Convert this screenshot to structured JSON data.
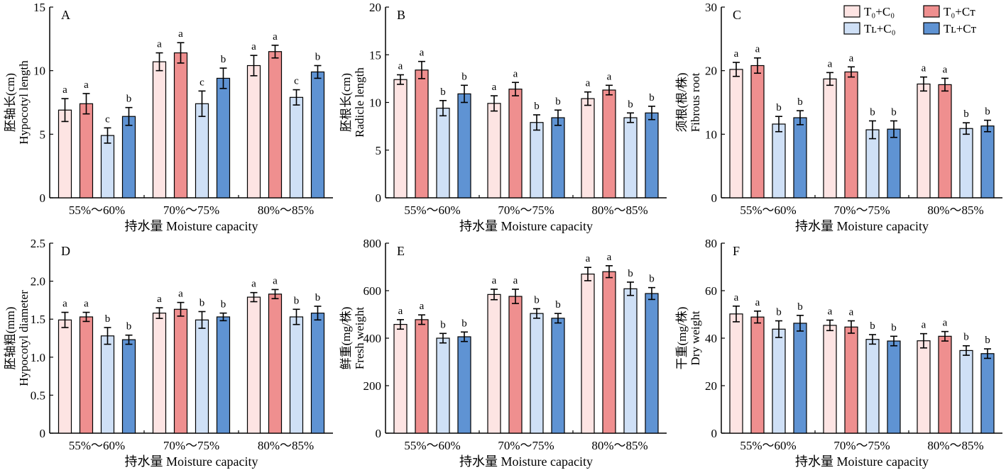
{
  "legend": [
    {
      "label": "T₀+C₀",
      "color": "#fde4e3"
    },
    {
      "label": "T₀+Cᴛ",
      "color": "#ef8f8f"
    },
    {
      "label": "Tʟ+C₀",
      "color": "#cfe0f6"
    },
    {
      "label": "Tʟ+Cᴛ",
      "color": "#5f93d3"
    }
  ],
  "chart_data": [
    {
      "type": "bar",
      "panel_label": "A",
      "categories": [
        "55%～60%",
        "70%～75%",
        "80%～85%"
      ],
      "xlabel": "持水量 Moisture capacity",
      "ylabel_cn": "胚轴长(cm)",
      "ylabel_en": "Hypocotyl length",
      "ylim": [
        0,
        15
      ],
      "yticks": [
        0,
        5,
        10,
        15
      ],
      "series": [
        {
          "values": [
            6.9,
            10.7,
            10.4
          ],
          "errors": [
            0.9,
            0.7,
            0.8
          ],
          "letters": [
            "a",
            "a",
            "a"
          ]
        },
        {
          "values": [
            7.4,
            11.4,
            11.5
          ],
          "errors": [
            0.8,
            0.8,
            0.5
          ],
          "letters": [
            "a",
            "a",
            "a"
          ]
        },
        {
          "values": [
            4.9,
            7.4,
            7.9
          ],
          "errors": [
            0.6,
            1.0,
            0.6
          ],
          "letters": [
            "c",
            "c",
            "c"
          ]
        },
        {
          "values": [
            6.4,
            9.4,
            9.9
          ],
          "errors": [
            0.7,
            0.8,
            0.5
          ],
          "letters": [
            "b",
            "b",
            "b"
          ]
        }
      ]
    },
    {
      "type": "bar",
      "panel_label": "B",
      "categories": [
        "55%～60%",
        "70%～75%",
        "80%～85%"
      ],
      "xlabel": "持水量 Moisture capacity",
      "ylabel_cn": "胚根长(cm)",
      "ylabel_en": "Radicle length",
      "ylim": [
        0,
        20
      ],
      "yticks": [
        0,
        5,
        10,
        15,
        20
      ],
      "series": [
        {
          "values": [
            12.4,
            9.9,
            10.4
          ],
          "errors": [
            0.5,
            0.8,
            0.7
          ],
          "letters": [
            "a",
            "a",
            "a"
          ]
        },
        {
          "values": [
            13.4,
            11.4,
            11.3
          ],
          "errors": [
            0.9,
            0.7,
            0.5
          ],
          "letters": [
            "a",
            "a",
            "a"
          ]
        },
        {
          "values": [
            9.4,
            7.9,
            8.4
          ],
          "errors": [
            0.8,
            0.8,
            0.5
          ],
          "letters": [
            "b",
            "b",
            "b"
          ]
        },
        {
          "values": [
            10.9,
            8.4,
            8.9
          ],
          "errors": [
            0.9,
            0.8,
            0.7
          ],
          "letters": [
            "b",
            "b",
            "b"
          ]
        }
      ]
    },
    {
      "type": "bar",
      "panel_label": "C",
      "categories": [
        "55%～60%",
        "70%～75%",
        "80%～85%"
      ],
      "xlabel": "持水量 Moisture capacity",
      "ylabel_cn": "须根(根/株)",
      "ylabel_en": "Fibrous root",
      "ylim": [
        0,
        30
      ],
      "yticks": [
        0,
        10,
        20,
        30
      ],
      "series": [
        {
          "values": [
            20.2,
            18.7,
            17.9
          ],
          "errors": [
            1.1,
            1.0,
            1.1
          ],
          "letters": [
            "a",
            "a",
            "a"
          ]
        },
        {
          "values": [
            20.8,
            19.8,
            17.8
          ],
          "errors": [
            1.2,
            0.8,
            1.0
          ],
          "letters": [
            "a",
            "a",
            "a"
          ]
        },
        {
          "values": [
            11.6,
            10.7,
            10.9
          ],
          "errors": [
            1.2,
            1.4,
            0.9
          ],
          "letters": [
            "b",
            "b",
            "b"
          ]
        },
        {
          "values": [
            12.6,
            10.8,
            11.3
          ],
          "errors": [
            1.1,
            1.3,
            0.9
          ],
          "letters": [
            "b",
            "b",
            "b"
          ]
        }
      ]
    },
    {
      "type": "bar",
      "panel_label": "D",
      "categories": [
        "55%～60%",
        "70%～75%",
        "80%～85%"
      ],
      "xlabel": "持水量 Moisture capacity",
      "ylabel_cn": "胚轴粗(mm)",
      "ylabel_en": "Hypocotyl diameter",
      "ylim": [
        0,
        2.5
      ],
      "yticks": [
        0,
        0.5,
        1.0,
        1.5,
        2.0,
        2.5
      ],
      "ytick_labels": [
        "0",
        "0.5",
        "1.0",
        "1.5",
        "2.0",
        "2.5"
      ],
      "series": [
        {
          "values": [
            1.49,
            1.58,
            1.79
          ],
          "errors": [
            0.1,
            0.07,
            0.06
          ],
          "letters": [
            "a",
            "a",
            "a"
          ]
        },
        {
          "values": [
            1.53,
            1.63,
            1.83
          ],
          "errors": [
            0.06,
            0.09,
            0.06
          ],
          "letters": [
            "a",
            "a",
            "a"
          ]
        },
        {
          "values": [
            1.28,
            1.49,
            1.53
          ],
          "errors": [
            0.11,
            0.11,
            0.1
          ],
          "letters": [
            "b",
            "b",
            "b"
          ]
        },
        {
          "values": [
            1.23,
            1.53,
            1.58
          ],
          "errors": [
            0.06,
            0.05,
            0.09
          ],
          "letters": [
            "b",
            "b",
            "b"
          ]
        }
      ]
    },
    {
      "type": "bar",
      "panel_label": "E",
      "categories": [
        "55%～60%",
        "70%～75%",
        "80%～85%"
      ],
      "xlabel": "持水量 Moisture capacity",
      "ylabel_cn": "鲜重(mg/株)",
      "ylabel_en": "Fresh weight",
      "ylim": [
        0,
        800
      ],
      "yticks": [
        0,
        200,
        400,
        600,
        800
      ],
      "series": [
        {
          "values": [
            458,
            584,
            670
          ],
          "errors": [
            20,
            22,
            28
          ],
          "letters": [
            "a",
            "a",
            "a"
          ]
        },
        {
          "values": [
            478,
            576,
            680
          ],
          "errors": [
            20,
            30,
            25
          ],
          "letters": [
            "a",
            "a",
            "a"
          ]
        },
        {
          "values": [
            400,
            504,
            608
          ],
          "errors": [
            20,
            20,
            28
          ],
          "letters": [
            "b",
            "b",
            "b"
          ]
        },
        {
          "values": [
            406,
            484,
            588
          ],
          "errors": [
            20,
            20,
            25
          ],
          "letters": [
            "b",
            "b",
            "b"
          ]
        }
      ]
    },
    {
      "type": "bar",
      "panel_label": "F",
      "categories": [
        "55%～60%",
        "70%～75%",
        "80%～85%"
      ],
      "xlabel": "持水量 Moisture capacity",
      "ylabel_cn": "干重(mg/株)",
      "ylabel_en": "Dry weight",
      "ylim": [
        0,
        80
      ],
      "yticks": [
        0,
        20,
        40,
        60,
        80
      ],
      "series": [
        {
          "values": [
            50.2,
            45.4,
            38.9
          ],
          "errors": [
            3.3,
            2.2,
            3.0
          ],
          "letters": [
            "a",
            "a",
            "a"
          ]
        },
        {
          "values": [
            48.9,
            44.7,
            40.8
          ],
          "errors": [
            2.5,
            2.6,
            2.0
          ],
          "letters": [
            "a",
            "a",
            "a"
          ]
        },
        {
          "values": [
            43.8,
            39.5,
            34.8
          ],
          "errors": [
            3.5,
            2.0,
            2.0
          ],
          "letters": [
            "b",
            "b",
            "b"
          ]
        },
        {
          "values": [
            46.3,
            38.8,
            33.5
          ],
          "errors": [
            3.3,
            2.0,
            2.0
          ],
          "letters": [
            "b",
            "b",
            "b"
          ]
        }
      ]
    }
  ]
}
